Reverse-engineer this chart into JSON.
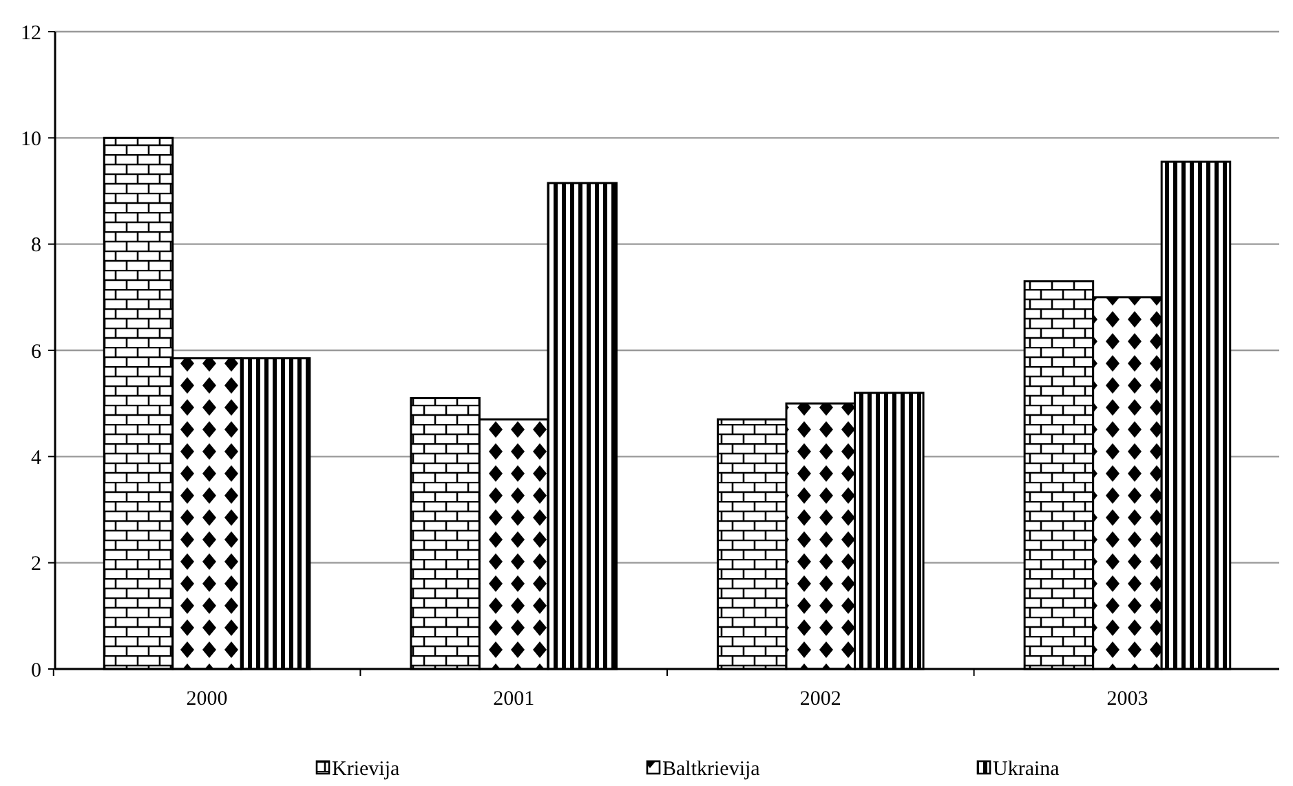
{
  "chart_data": {
    "type": "bar",
    "categories": [
      "2000",
      "2001",
      "2002",
      "2003"
    ],
    "series": [
      {
        "name": "Krievija",
        "color": "#000000",
        "values": [
          10.0,
          5.1,
          4.7,
          7.3
        ]
      },
      {
        "name": "Baltkrievija",
        "color": "#000000",
        "values": [
          5.85,
          4.7,
          5.0,
          7.0
        ]
      },
      {
        "name": "Ukraina",
        "color": "#000000",
        "values": [
          5.85,
          9.15,
          5.2,
          9.55
        ]
      }
    ],
    "ylim": [
      0,
      12
    ],
    "yticks": [
      0,
      2,
      4,
      6,
      8,
      10,
      12
    ],
    "grid": "y",
    "legend": "bottom"
  }
}
